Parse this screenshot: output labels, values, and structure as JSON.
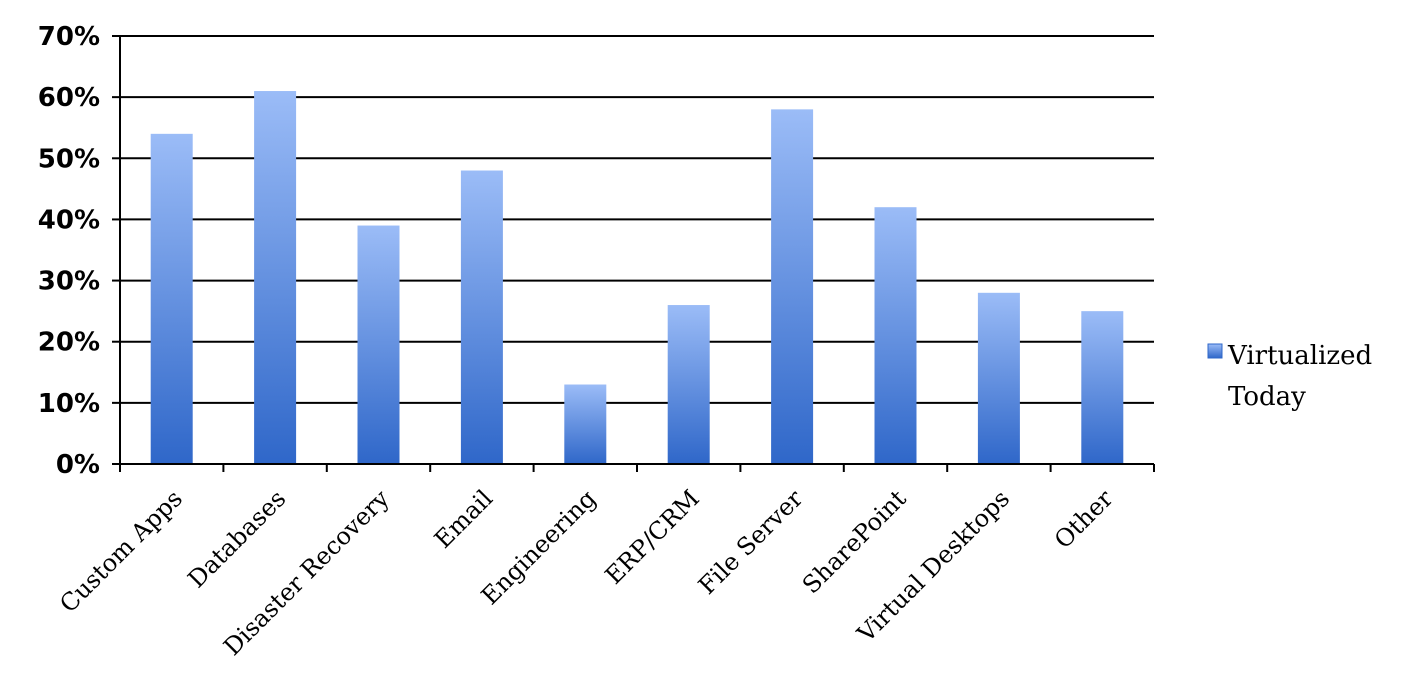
{
  "chart_data": {
    "type": "bar",
    "categories": [
      "Custom Apps",
      "Databases",
      "Disaster Recovery",
      "Email",
      "Engineering",
      "ERP/CRM",
      "File Server",
      "SharePoint",
      "Virtual Desktops",
      "Other"
    ],
    "series": [
      {
        "name": "Virtualized Today",
        "values": [
          54,
          61,
          39,
          48,
          13,
          26,
          58,
          42,
          28,
          25
        ]
      }
    ],
    "yticks": [
      "0%",
      "10%",
      "20%",
      "30%",
      "40%",
      "50%",
      "60%",
      "70%"
    ],
    "ylim": [
      0,
      70
    ],
    "grid": true,
    "legend": {
      "position": "right",
      "lines": [
        "Virtualized",
        "Today"
      ]
    },
    "colors": {
      "bar_top": "#9bbcf7",
      "bar_bottom": "#2f67c9",
      "grid": "#000000"
    }
  }
}
